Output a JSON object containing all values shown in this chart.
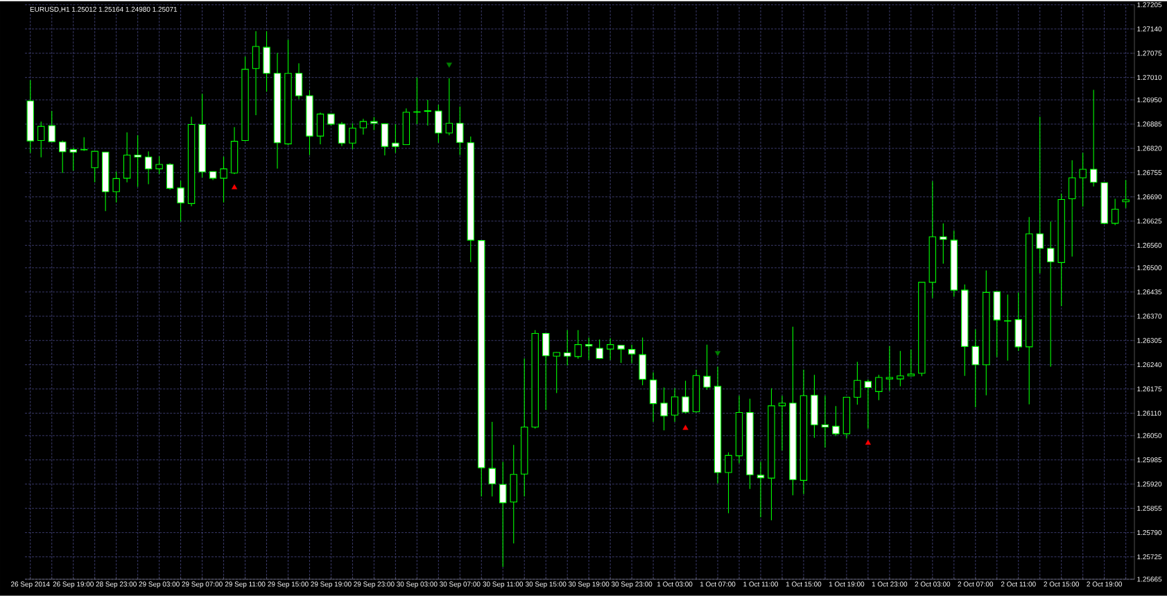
{
  "chart_data": {
    "type": "candlestick",
    "title": "EURUSD,H1  1.25012 1.25164 1.24980 1.25071",
    "color": "#00ff00",
    "grid": true,
    "categories": [
      "26 Sep 2014",
      null,
      null,
      null,
      "26 Sep 19:00",
      null,
      null,
      null,
      "28 Sep 23:00",
      null,
      null,
      null,
      "29 Sep 03:00",
      null,
      null,
      null,
      "29 Sep 07:00",
      null,
      null,
      null,
      "29 Sep 11:00",
      null,
      null,
      null,
      "29 Sep 15:00",
      null,
      null,
      null,
      "29 Sep 19:00",
      null,
      null,
      null,
      "29 Sep 23:00",
      null,
      null,
      null,
      "30 Sep 03:00",
      null,
      null,
      null,
      "30 Sep 07:00",
      null,
      null,
      null,
      "30 Sep 11:00",
      null,
      null,
      null,
      "30 Sep 15:00",
      null,
      null,
      null,
      "30 Sep 19:00",
      null,
      null,
      null,
      "30 Sep 23:00",
      null,
      null,
      null,
      "1 Oct 03:00",
      null,
      null,
      null,
      "1 Oct 07:00",
      null,
      null,
      null,
      "1 Oct 11:00",
      null,
      null,
      null,
      "1 Oct 15:00",
      null,
      null,
      null,
      "1 Oct 19:00",
      null,
      null,
      null,
      "1 Oct 23:00",
      null,
      null,
      null,
      "2 Oct 03:00",
      null,
      null,
      null,
      "2 Oct 07:00",
      null,
      null,
      null,
      "2 Oct 11:00",
      null,
      null,
      null,
      "2 Oct 15:00",
      null,
      null,
      null,
      "2 Oct 19:00",
      null,
      null
    ],
    "ohlc": [
      [
        1.26947,
        1.27003,
        1.26808,
        1.2684
      ],
      [
        1.26841,
        1.26892,
        1.26796,
        1.26879
      ],
      [
        1.26881,
        1.2692,
        1.26838,
        1.26838
      ],
      [
        1.26837,
        1.26841,
        1.26754,
        1.26811
      ],
      [
        1.26817,
        1.26822,
        1.2676,
        1.2681
      ],
      [
        1.26817,
        1.2685,
        1.26813,
        1.26816
      ],
      [
        1.26768,
        1.26812,
        1.26729,
        1.26812
      ],
      [
        1.2681,
        1.2681,
        1.26652,
        1.26704
      ],
      [
        1.26704,
        1.26758,
        1.26675,
        1.26739
      ],
      [
        1.2674,
        1.26863,
        1.26729,
        1.26802
      ],
      [
        1.26802,
        1.26855,
        1.26717,
        1.26797
      ],
      [
        1.26797,
        1.26812,
        1.26724,
        1.26765
      ],
      [
        1.26765,
        1.26799,
        1.26751,
        1.26777
      ],
      [
        1.26777,
        1.2678,
        1.26709,
        1.26713
      ],
      [
        1.26714,
        1.26733,
        1.26624,
        1.26674
      ],
      [
        1.26672,
        1.26905,
        1.26665,
        1.26884
      ],
      [
        1.26884,
        1.26966,
        1.26742,
        1.26757
      ],
      [
        1.26758,
        1.26758,
        1.26735,
        1.2674
      ],
      [
        1.2674,
        1.26798,
        1.26675,
        1.26765
      ],
      [
        1.26754,
        1.26877,
        1.26751,
        1.26839
      ],
      [
        1.26841,
        1.27066,
        1.26839,
        1.27032
      ],
      [
        1.27034,
        1.27134,
        1.26909,
        1.27093
      ],
      [
        1.27091,
        1.27134,
        1.26972,
        1.27021
      ],
      [
        1.27021,
        1.27076,
        1.26766,
        1.26835
      ],
      [
        1.26832,
        1.27111,
        1.26829,
        1.27021
      ],
      [
        1.27021,
        1.27048,
        1.26952,
        1.26961
      ],
      [
        1.26961,
        1.26976,
        1.26802,
        1.26853
      ],
      [
        1.26853,
        1.26916,
        1.26831,
        1.26912
      ],
      [
        1.26912,
        1.26912,
        1.26881,
        1.26885
      ],
      [
        1.26885,
        1.26891,
        1.26826,
        1.26834
      ],
      [
        1.26834,
        1.26887,
        1.26818,
        1.26874
      ],
      [
        1.26875,
        1.26899,
        1.26857,
        1.26892
      ],
      [
        1.26892,
        1.26904,
        1.26869,
        1.26887
      ],
      [
        1.26886,
        1.26886,
        1.26801,
        1.26825
      ],
      [
        1.26834,
        1.26885,
        1.26808,
        1.26825
      ],
      [
        1.2683,
        1.26927,
        1.2683,
        1.26917
      ],
      [
        1.26917,
        1.2701,
        1.26885,
        1.26918
      ],
      [
        1.26919,
        1.2695,
        1.26881,
        1.26921
      ],
      [
        1.2692,
        1.26937,
        1.26835,
        1.26861
      ],
      [
        1.26861,
        1.27008,
        1.26855,
        1.26887
      ],
      [
        1.26887,
        1.26932,
        1.26802,
        1.26836
      ],
      [
        1.26835,
        1.26852,
        1.26515,
        1.26574
      ],
      [
        1.26573,
        1.26573,
        1.25887,
        1.25964
      ],
      [
        1.25962,
        1.26087,
        1.25887,
        1.25921
      ],
      [
        1.25919,
        1.2598,
        1.25698,
        1.2587
      ],
      [
        1.25872,
        1.26025,
        1.25761,
        1.25946
      ],
      [
        1.25947,
        1.26257,
        1.25887,
        1.26073
      ],
      [
        1.26073,
        1.26333,
        1.26069,
        1.26324
      ],
      [
        1.26324,
        1.26324,
        1.26119,
        1.26264
      ],
      [
        1.26263,
        1.26274,
        1.26164,
        1.26273
      ],
      [
        1.26272,
        1.26333,
        1.26238,
        1.26263
      ],
      [
        1.26262,
        1.26333,
        1.26256,
        1.26294
      ],
      [
        1.26294,
        1.26313,
        1.26253,
        1.2629
      ],
      [
        1.26284,
        1.26308,
        1.26255,
        1.26257
      ],
      [
        1.26282,
        1.26311,
        1.26253,
        1.26294
      ],
      [
        1.26292,
        1.26292,
        1.26245,
        1.26282
      ],
      [
        1.26281,
        1.26294,
        1.26244,
        1.26269
      ],
      [
        1.26267,
        1.26313,
        1.26185,
        1.26201
      ],
      [
        1.26199,
        1.2622,
        1.26087,
        1.26136
      ],
      [
        1.26137,
        1.26179,
        1.26064,
        1.26103
      ],
      [
        1.26105,
        1.26177,
        1.26087,
        1.26154
      ],
      [
        1.26154,
        1.26197,
        1.26109,
        1.26113
      ],
      [
        1.26114,
        1.26227,
        1.26112,
        1.26211
      ],
      [
        1.26209,
        1.26294,
        1.26173,
        1.2618
      ],
      [
        1.26182,
        1.26235,
        1.25922,
        1.25951
      ],
      [
        1.25951,
        1.26005,
        1.25842,
        1.25997
      ],
      [
        1.25996,
        1.26157,
        1.25976,
        1.26112
      ],
      [
        1.26112,
        1.26149,
        1.25907,
        1.25945
      ],
      [
        1.25944,
        1.2598,
        1.25831,
        1.25937
      ],
      [
        1.25936,
        1.26177,
        1.25823,
        1.2613
      ],
      [
        1.2613,
        1.26157,
        1.2601,
        1.26137
      ],
      [
        1.26137,
        1.26342,
        1.2589,
        1.25932
      ],
      [
        1.2593,
        1.26227,
        1.25893,
        1.26157
      ],
      [
        1.26158,
        1.26213,
        1.26044,
        1.26079
      ],
      [
        1.26079,
        1.26157,
        1.26018,
        1.26073
      ],
      [
        1.26075,
        1.26129,
        1.26049,
        1.26055
      ],
      [
        1.26055,
        1.26153,
        1.26042,
        1.26153
      ],
      [
        1.26153,
        1.26248,
        1.26133,
        1.26198
      ],
      [
        1.26195,
        1.26201,
        1.26069,
        1.26179
      ],
      [
        1.26168,
        1.26213,
        1.26145,
        1.26206
      ],
      [
        1.26202,
        1.2629,
        1.2617,
        1.26206
      ],
      [
        1.26202,
        1.26277,
        1.26182,
        1.2621
      ],
      [
        1.2621,
        1.26281,
        1.26209,
        1.26215
      ],
      [
        1.26217,
        1.26461,
        1.26209,
        1.26461
      ],
      [
        1.26461,
        1.26732,
        1.26419,
        1.26583
      ],
      [
        1.26583,
        1.26619,
        1.26511,
        1.26576
      ],
      [
        1.26574,
        1.266,
        1.26422,
        1.2644
      ],
      [
        1.2644,
        1.26455,
        1.2621,
        1.26289
      ],
      [
        1.26289,
        1.26335,
        1.26126,
        1.2624
      ],
      [
        1.2624,
        1.26493,
        1.26158,
        1.26434
      ],
      [
        1.26436,
        1.26436,
        1.26261,
        1.2636
      ],
      [
        1.26358,
        1.26428,
        1.26251,
        1.26357
      ],
      [
        1.26361,
        1.26434,
        1.26277,
        1.26288
      ],
      [
        1.26288,
        1.26636,
        1.26134,
        1.26591
      ],
      [
        1.26591,
        1.26905,
        1.26485,
        1.26552
      ],
      [
        1.26552,
        1.26624,
        1.26235,
        1.26516
      ],
      [
        1.26514,
        1.26699,
        1.26397,
        1.26683
      ],
      [
        1.26685,
        1.26788,
        1.2653,
        1.26741
      ],
      [
        1.26741,
        1.26808,
        1.26664,
        1.26764
      ],
      [
        1.26764,
        1.26977,
        1.26718,
        1.26729
      ],
      [
        1.26728,
        1.26728,
        1.26617,
        1.26619
      ],
      [
        1.26619,
        1.26685,
        1.26614,
        1.26657
      ],
      [
        1.26677,
        1.26735,
        1.2666,
        1.26682
      ]
    ],
    "series": [
      {
        "type": "scatter",
        "color": "#ff0000",
        "marker": "triangle",
        "values": [
          null,
          null,
          null,
          null,
          null,
          null,
          null,
          null,
          null,
          null,
          null,
          null,
          null,
          null,
          null,
          null,
          null,
          null,
          null,
          1.26715,
          null,
          null,
          null,
          null,
          null,
          null,
          null,
          null,
          null,
          null,
          null,
          null,
          null,
          null,
          null,
          null,
          null,
          null,
          null,
          null,
          null,
          null,
          null,
          null,
          null,
          null,
          null,
          null,
          null,
          null,
          null,
          null,
          null,
          null,
          null,
          null,
          null,
          null,
          null,
          null,
          null,
          1.2607,
          null,
          null,
          null,
          null,
          null,
          null,
          null,
          null,
          null,
          null,
          null,
          null,
          null,
          null,
          null,
          null,
          1.2603,
          null,
          null,
          null,
          null,
          null,
          null,
          null,
          null,
          null,
          null,
          null,
          null,
          null,
          null,
          null,
          null,
          null,
          null,
          null,
          null,
          null,
          null,
          null,
          null
        ]
      },
      {
        "type": "scatter",
        "color": "#008000",
        "marker": "triangle",
        "values": [
          null,
          null,
          null,
          null,
          null,
          null,
          null,
          null,
          null,
          null,
          null,
          null,
          null,
          null,
          null,
          null,
          null,
          null,
          null,
          null,
          null,
          null,
          null,
          null,
          null,
          null,
          null,
          null,
          null,
          null,
          null,
          null,
          null,
          null,
          null,
          null,
          null,
          null,
          null,
          1.27045,
          null,
          null,
          null,
          null,
          null,
          null,
          null,
          null,
          null,
          null,
          null,
          null,
          null,
          null,
          null,
          null,
          null,
          null,
          null,
          null,
          null,
          null,
          null,
          null,
          1.26272,
          null,
          null,
          null,
          null,
          null,
          null,
          null,
          null,
          null,
          null,
          null,
          null,
          null,
          null,
          null,
          null,
          null,
          null,
          null,
          null,
          null,
          null,
          null,
          null,
          null,
          null,
          null,
          null,
          null,
          null,
          null,
          null,
          null,
          null,
          null,
          null,
          null,
          null
        ]
      }
    ],
    "ylim": [
      1.25665,
      1.27205
    ],
    "yticks": [
      1.25665,
      1.25725,
      {
        "value": 1.2579,
        "label": "1.25790"
      },
      1.25855,
      {
        "value": 1.2592,
        "label": "1.25920"
      },
      1.25985,
      {
        "value": 1.2605,
        "label": "1.26050"
      },
      {
        "value": 1.2611,
        "label": "1.26110"
      },
      1.26175,
      {
        "value": 1.2624,
        "label": "1.26240"
      },
      1.26305,
      {
        "value": 1.2637,
        "label": "1.26370"
      },
      1.26435,
      {
        "value": 1.265,
        "label": "1.26500"
      },
      {
        "value": 1.2656,
        "label": "1.26560"
      },
      1.26625,
      {
        "value": 1.2669,
        "label": "1.26690"
      },
      1.26755,
      {
        "value": 1.2682,
        "label": "1.26820"
      },
      1.26885,
      {
        "value": 1.2695,
        "label": "1.26950"
      },
      {
        "value": 1.2701,
        "label": "1.27010"
      },
      1.27075,
      {
        "value": 1.2714,
        "label": "1.27140"
      },
      1.27205
    ]
  }
}
